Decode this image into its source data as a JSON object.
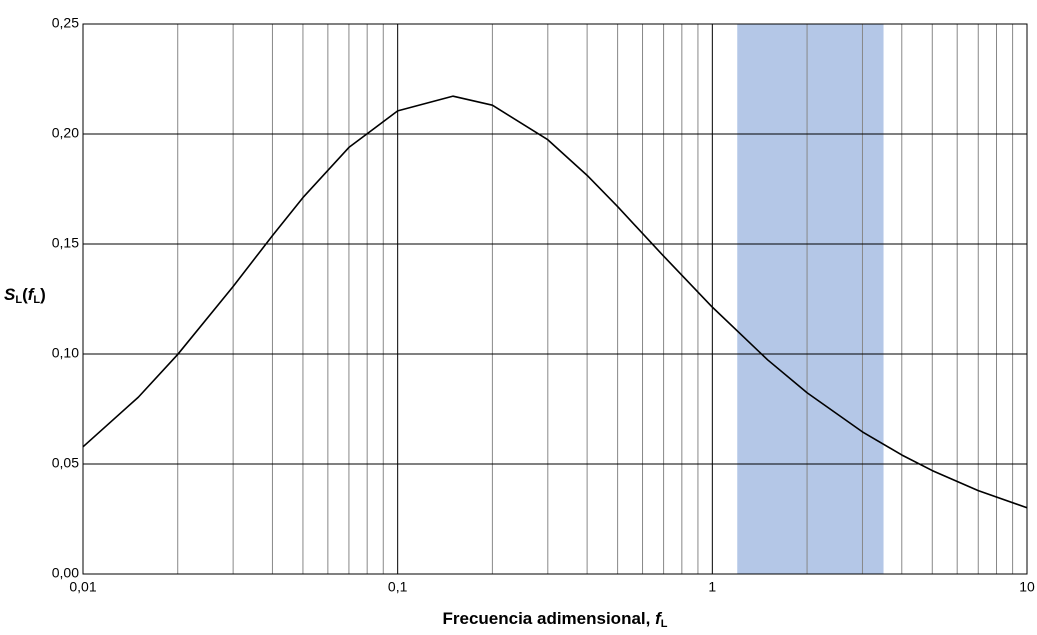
{
  "chart_data": {
    "type": "line",
    "x_label": [
      "Frecuencia adimensional, ",
      "f",
      "L"
    ],
    "y_label": [
      "S",
      "L",
      "(",
      "f",
      "L",
      ")"
    ],
    "x": [
      0.01,
      0.015,
      0.02,
      0.03,
      0.04,
      0.05,
      0.07,
      0.1,
      0.15,
      0.2,
      0.3,
      0.4,
      0.5,
      0.7,
      1,
      1.5,
      2,
      3,
      4,
      5,
      7,
      10
    ],
    "series": [
      {
        "color": "#000000",
        "values": [
          0.0578,
          0.0804,
          0.0998,
          0.1307,
          0.1538,
          0.1711,
          0.1939,
          0.2105,
          0.2172,
          0.2131,
          0.1974,
          0.1812,
          0.167,
          0.1445,
          0.1213,
          0.0973,
          0.0824,
          0.0646,
          0.0541,
          0.047,
          0.0379,
          0.0301
        ]
      }
    ],
    "xlog": true,
    "xlim": [
      0.01,
      10
    ],
    "ylim": [
      0,
      0.25
    ],
    "xticks": [
      {
        "value": 0.01,
        "label": "0,01"
      },
      {
        "value": 0.1,
        "label": "0,1"
      },
      1,
      10
    ],
    "xgrid_minor": [
      0.02,
      0.03,
      0.04,
      0.05,
      0.06,
      0.07,
      0.08,
      0.09,
      0.2,
      0.3,
      0.4,
      0.5,
      0.6,
      0.7,
      0.8,
      0.9,
      2,
      3,
      4,
      5,
      6,
      7,
      8,
      9
    ],
    "yticks": [
      {
        "value": 0,
        "label": "0,00"
      },
      {
        "value": 0.05,
        "label": "0,05"
      },
      {
        "value": 0.1,
        "label": "0,10"
      },
      {
        "value": 0.15,
        "label": "0,15"
      },
      {
        "value": 0.2,
        "label": "0,20"
      },
      {
        "value": 0.25,
        "label": "0,25"
      }
    ],
    "shaded_region": {
      "x": [
        1.2,
        3.5
      ],
      "color": "#b4c7e7"
    },
    "grid": true
  }
}
